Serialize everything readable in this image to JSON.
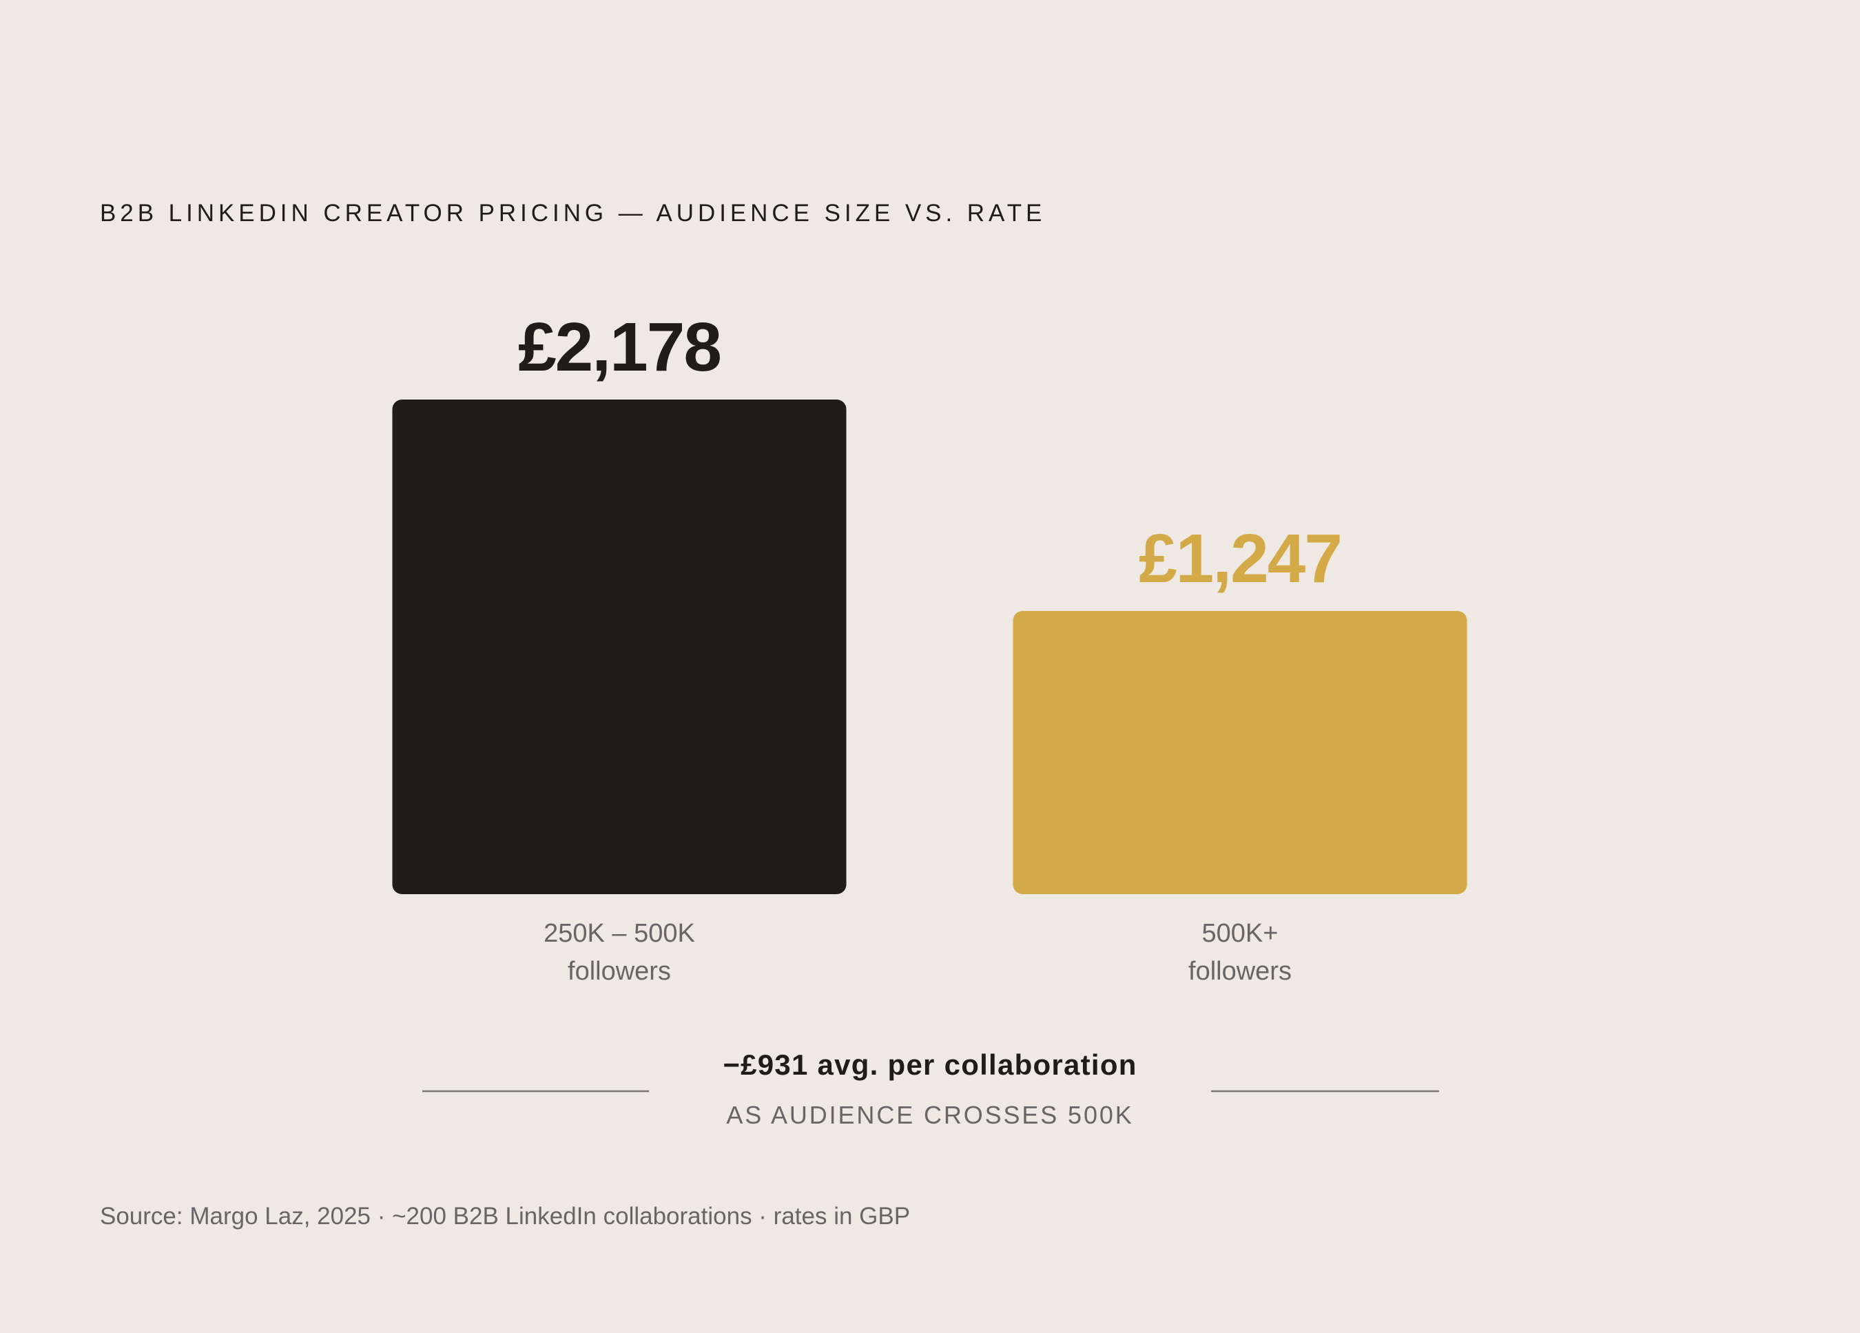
{
  "chart_data": {
    "type": "bar",
    "title": "B2B LINKEDIN CREATOR PRICING — AUDIENCE SIZE VS. RATE",
    "categories": [
      "250K – 500K\nfollowers",
      "500K+\nfollowers"
    ],
    "values": [
      2178,
      1247
    ],
    "value_labels": [
      "£2,178",
      "£1,247"
    ],
    "colors": [
      "#1e1d19",
      "#d4a947"
    ],
    "annotation": {
      "headline": "−£931 avg. per collaboration",
      "subtitle": "AS AUDIENCE CROSSES 500K"
    },
    "source": "Source: Margo Laz, 2025 · ~200 B2B LinkedIn collaborations · rates in GBP"
  }
}
